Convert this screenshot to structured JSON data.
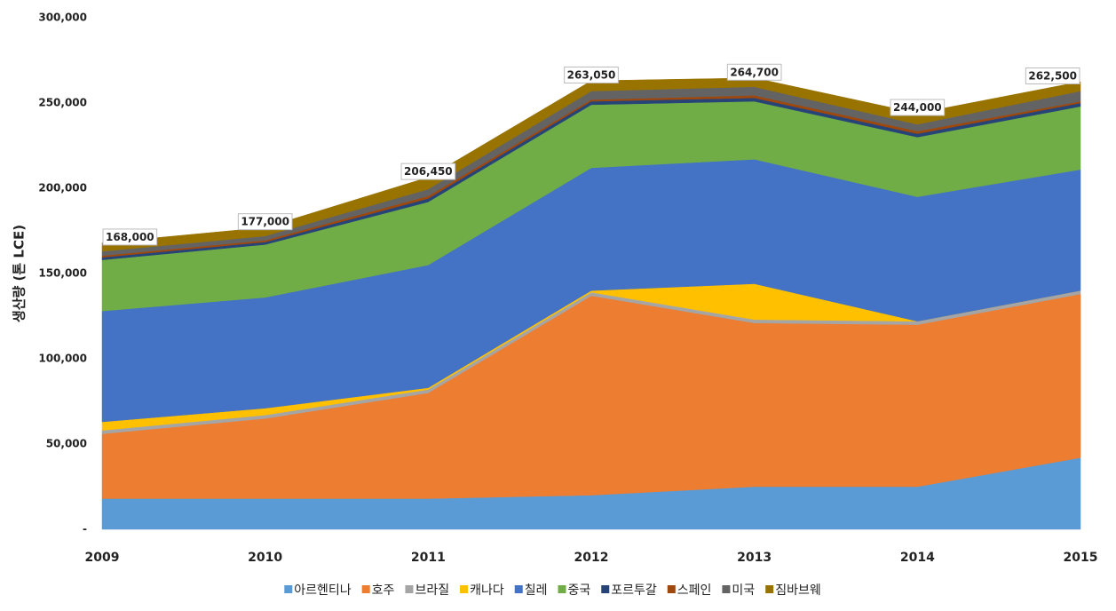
{
  "chart_data": {
    "type": "stacked_area",
    "y_label": "생산량 (톤 LCE)",
    "categories": [
      "2009",
      "2010",
      "2011",
      "2012",
      "2013",
      "2014",
      "2015"
    ],
    "ylim": [
      0,
      300000
    ],
    "yticks": [
      {
        "value": 0,
        "label": "-"
      },
      {
        "value": 50000,
        "label": "50,000"
      },
      {
        "value": 100000,
        "label": "100,000"
      },
      {
        "value": 150000,
        "label": "150,000"
      },
      {
        "value": 200000,
        "label": "200,000"
      },
      {
        "value": 250000,
        "label": "250,000"
      },
      {
        "value": 300000,
        "label": "300,000"
      }
    ],
    "series": [
      {
        "name": "아르헨티나",
        "color": "#5b9bd5",
        "values": [
          18000,
          18000,
          18000,
          20000,
          25000,
          25000,
          42000
        ]
      },
      {
        "name": "호주",
        "color": "#ed7d31",
        "values": [
          38000,
          47000,
          62000,
          117000,
          96000,
          95000,
          96000
        ]
      },
      {
        "name": "브라질",
        "color": "#a5a5a5",
        "values": [
          2000,
          2000,
          2000,
          2000,
          2000,
          2000,
          2000
        ]
      },
      {
        "name": "캐나다",
        "color": "#ffc000",
        "values": [
          5000,
          4000,
          1000,
          1000,
          21000,
          0,
          0
        ]
      },
      {
        "name": "칠레",
        "color": "#4472c4",
        "values": [
          65000,
          65000,
          72000,
          72000,
          73000,
          73000,
          71000
        ]
      },
      {
        "name": "중국",
        "color": "#70ad47",
        "values": [
          30000,
          31000,
          37000,
          37000,
          34000,
          35000,
          37000
        ]
      },
      {
        "name": "포르투갈",
        "color": "#264478",
        "values": [
          1500,
          1500,
          2000,
          2000,
          2000,
          2000,
          2000
        ]
      },
      {
        "name": "스페인",
        "color": "#9e480e",
        "values": [
          1000,
          1000,
          1500,
          1000,
          1500,
          1500,
          1000
        ]
      },
      {
        "name": "미국",
        "color": "#636363",
        "values": [
          2500,
          2500,
          4000,
          5000,
          5000,
          4000,
          6000
        ]
      },
      {
        "name": "짐바브웨",
        "color": "#997300",
        "values": [
          5000,
          5000,
          6950,
          6050,
          5200,
          6500,
          5500
        ]
      }
    ],
    "totals": {
      "values": [
        168000,
        177000,
        206450,
        263050,
        264700,
        244000,
        262500
      ],
      "value_labels": [
        "168,000",
        "177,000",
        "206,450",
        "263,050",
        "264,700",
        "244,000",
        "262,500"
      ]
    }
  }
}
